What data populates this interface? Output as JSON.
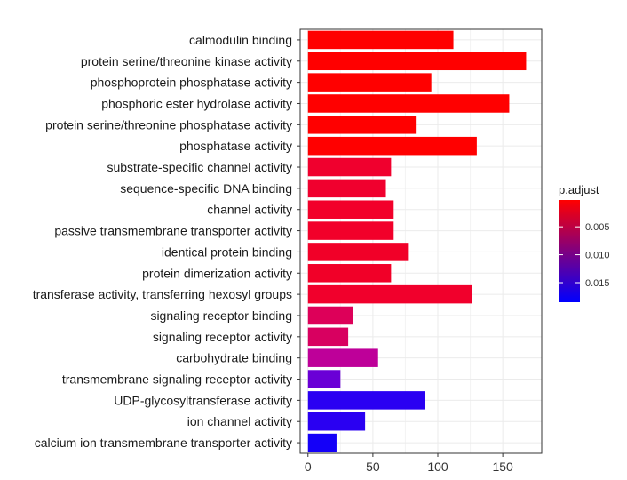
{
  "chart_data": {
    "type": "bar",
    "orientation": "horizontal",
    "categories": [
      "calmodulin binding",
      "protein serine/threonine kinase activity",
      "phosphoprotein phosphatase activity",
      "phosphoric ester hydrolase activity",
      "protein serine/threonine phosphatase activity",
      "phosphatase activity",
      "substrate-specific channel activity",
      "sequence-specific DNA binding",
      "channel activity",
      "passive transmembrane transporter activity",
      "identical protein binding",
      "protein dimerization activity",
      "transferase activity, transferring hexosyl groups",
      "signaling receptor binding",
      "signaling receptor activity",
      "carbohydrate binding",
      "transmembrane signaling receptor activity",
      "UDP-glycosyltransferase activity",
      "ion channel activity",
      "calcium ion transmembrane transporter activity"
    ],
    "values": [
      112,
      168,
      95,
      155,
      83,
      130,
      64,
      60,
      66,
      66,
      77,
      64,
      126,
      35,
      31,
      54,
      25,
      90,
      44,
      22
    ],
    "colors": [
      "#ff0000",
      "#ff0000",
      "#ff0000",
      "#ff0000",
      "#ff0000",
      "#ff0000",
      "#f0002e",
      "#f0002e",
      "#f2002a",
      "#f2002a",
      "#f10028",
      "#f10028",
      "#f1002c",
      "#dd0059",
      "#d80060",
      "#be0099",
      "#6a00d6",
      "#2a00f2",
      "#2a00f2",
      "#1400f8"
    ],
    "xlim": [
      -6,
      180
    ],
    "xticks": [
      "0",
      "50",
      "100",
      "150"
    ],
    "xlabel": "",
    "ylabel": "",
    "title": "",
    "grid": true,
    "legend": {
      "title": "p.adjust",
      "position": "right",
      "gradient_top": "#ff0000",
      "gradient_bottom": "#0000ff",
      "range": [
        0.0002,
        0.0185
      ],
      "ticks": [
        "0.005",
        "0.010",
        "0.015"
      ],
      "tick_values": [
        0.005,
        0.01,
        0.015
      ]
    }
  }
}
